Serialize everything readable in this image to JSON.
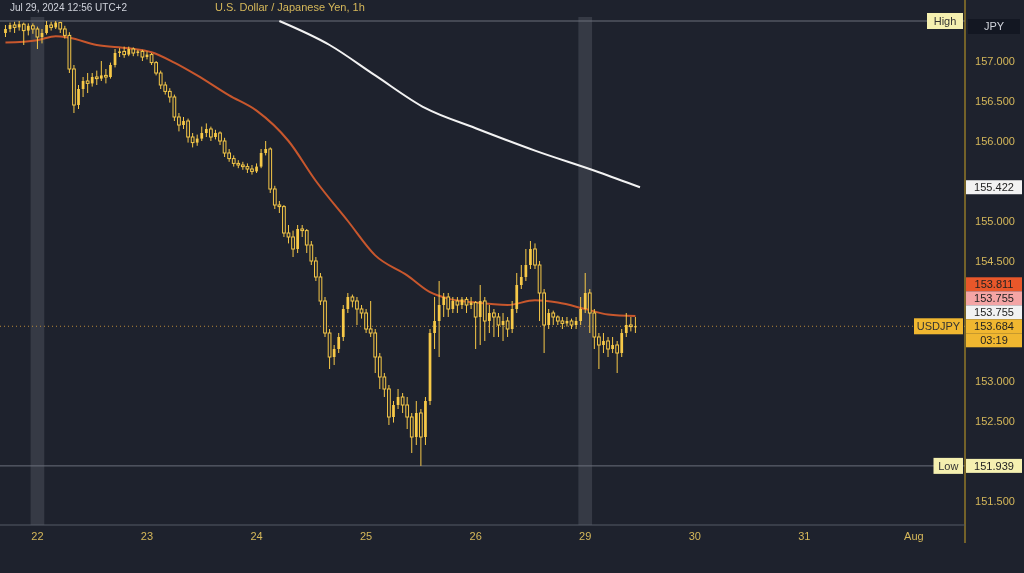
{
  "chart_data": {
    "type": "candlestick",
    "title": "U.S. Dollar / Japanese Yen, 1h",
    "subtitle": "Jul 29, 2024 12:56 UTC+2",
    "color": "#f7c948",
    "categories": [
      null,
      null,
      null,
      null,
      null,
      null,
      null,
      "22",
      null,
      null,
      null,
      null,
      null,
      null,
      null,
      null,
      null,
      null,
      null,
      null,
      null,
      null,
      null,
      null,
      null,
      null,
      null,
      null,
      null,
      null,
      null,
      "23",
      null,
      null,
      null,
      null,
      null,
      null,
      null,
      null,
      null,
      null,
      null,
      null,
      null,
      null,
      null,
      null,
      null,
      null,
      null,
      null,
      null,
      null,
      null,
      "24",
      null,
      null,
      null,
      null,
      null,
      null,
      null,
      null,
      null,
      null,
      null,
      null,
      null,
      null,
      null,
      null,
      null,
      null,
      null,
      null,
      null,
      null,
      null,
      "25",
      null,
      null,
      null,
      null,
      null,
      null,
      null,
      null,
      null,
      null,
      null,
      null,
      null,
      null,
      null,
      null,
      null,
      null,
      null,
      null,
      null,
      null,
      null,
      "26",
      null,
      null,
      null,
      null,
      null,
      null,
      null,
      null,
      null,
      null,
      null,
      null,
      null,
      null,
      null,
      null,
      null,
      null,
      null,
      null,
      null,
      null,
      null,
      "29",
      null,
      null,
      null,
      null,
      null,
      null,
      null,
      null,
      null,
      null,
      null,
      null,
      null,
      null,
      null,
      null,
      null,
      null,
      null,
      null,
      null,
      null,
      null,
      "30",
      null,
      null,
      null,
      null,
      null,
      null,
      null,
      null,
      null,
      null,
      null,
      null,
      null,
      null,
      null,
      null,
      null,
      null,
      null,
      null,
      null,
      null,
      null,
      "31",
      null,
      null,
      null,
      null,
      null,
      null,
      null,
      null,
      null,
      null,
      null,
      null,
      null,
      null,
      null,
      null,
      null,
      null,
      null,
      null,
      null,
      null,
      null,
      "Aug",
      null,
      null,
      null,
      null,
      null,
      null,
      null,
      null,
      null,
      null
    ],
    "ohlc": [
      [
        157.35,
        157.45,
        157.3,
        157.4
      ],
      [
        157.4,
        157.48,
        157.36,
        157.45
      ],
      [
        157.45,
        157.49,
        157.35,
        157.42
      ],
      [
        157.42,
        157.5,
        157.38,
        157.46
      ],
      [
        157.46,
        157.48,
        157.2,
        157.38
      ],
      [
        157.38,
        157.47,
        157.32,
        157.44
      ],
      [
        157.44,
        157.47,
        157.34,
        157.4
      ],
      [
        157.4,
        157.43,
        157.15,
        157.3
      ],
      [
        157.3,
        157.4,
        157.22,
        157.35
      ],
      [
        157.35,
        157.5,
        157.33,
        157.45
      ],
      [
        157.45,
        157.49,
        157.38,
        157.42
      ],
      [
        157.42,
        157.5,
        157.4,
        157.48
      ],
      [
        157.48,
        157.49,
        157.35,
        157.4
      ],
      [
        157.4,
        157.44,
        157.28,
        157.32
      ],
      [
        157.32,
        157.36,
        156.85,
        156.9
      ],
      [
        156.9,
        156.95,
        156.35,
        156.45
      ],
      [
        156.45,
        156.7,
        156.4,
        156.65
      ],
      [
        156.65,
        156.8,
        156.55,
        156.75
      ],
      [
        156.75,
        156.85,
        156.6,
        156.72
      ],
      [
        156.72,
        156.85,
        156.68,
        156.8
      ],
      [
        156.8,
        156.88,
        156.7,
        156.78
      ],
      [
        156.78,
        157,
        156.75,
        156.82
      ],
      [
        156.82,
        156.9,
        156.72,
        156.8
      ],
      [
        156.8,
        156.98,
        156.78,
        156.95
      ],
      [
        156.95,
        157.15,
        156.92,
        157.1
      ],
      [
        157.1,
        157.16,
        157.05,
        157.12
      ],
      [
        157.12,
        157.18,
        157.04,
        157.08
      ],
      [
        157.08,
        157.18,
        157.06,
        157.15
      ],
      [
        157.15,
        157.17,
        157.06,
        157.1
      ],
      [
        157.1,
        157.14,
        157.06,
        157.12
      ],
      [
        157.12,
        157.14,
        157,
        157.05
      ],
      [
        157.05,
        157.12,
        157.02,
        157.08
      ],
      [
        157.08,
        157.1,
        156.95,
        156.98
      ],
      [
        156.98,
        157,
        156.82,
        156.85
      ],
      [
        156.85,
        156.88,
        156.65,
        156.7
      ],
      [
        156.7,
        156.74,
        156.58,
        156.62
      ],
      [
        156.62,
        156.66,
        156.48,
        156.55
      ],
      [
        156.55,
        156.58,
        156.25,
        156.3
      ],
      [
        156.3,
        156.35,
        156.12,
        156.2
      ],
      [
        156.2,
        156.3,
        156.15,
        156.25
      ],
      [
        156.25,
        156.28,
        155.98,
        156.05
      ],
      [
        156.05,
        156.1,
        155.92,
        155.98
      ],
      [
        155.98,
        156.08,
        155.94,
        156.03
      ],
      [
        156.03,
        156.18,
        156,
        156.1
      ],
      [
        156.1,
        156.22,
        156.05,
        156.15
      ],
      [
        156.15,
        156.18,
        156,
        156.05
      ],
      [
        156.05,
        156.14,
        156.02,
        156.1
      ],
      [
        156.1,
        156.12,
        155.95,
        156
      ],
      [
        156,
        156.04,
        155.8,
        155.85
      ],
      [
        155.85,
        155.9,
        155.74,
        155.78
      ],
      [
        155.78,
        155.82,
        155.68,
        155.72
      ],
      [
        155.72,
        155.76,
        155.66,
        155.7
      ],
      [
        155.7,
        155.74,
        155.64,
        155.68
      ],
      [
        155.68,
        155.72,
        155.6,
        155.65
      ],
      [
        155.65,
        155.7,
        155.58,
        155.62
      ],
      [
        155.62,
        155.72,
        155.6,
        155.68
      ],
      [
        155.68,
        155.9,
        155.66,
        155.85
      ],
      [
        155.85,
        156,
        155.82,
        155.9
      ],
      [
        155.9,
        155.92,
        155.35,
        155.4
      ],
      [
        155.4,
        155.44,
        155.15,
        155.2
      ],
      [
        155.2,
        155.25,
        155.1,
        155.18
      ],
      [
        155.18,
        155.2,
        154.8,
        154.85
      ],
      [
        154.85,
        154.95,
        154.72,
        154.8
      ],
      [
        154.8,
        154.88,
        154.55,
        154.65
      ],
      [
        154.65,
        154.95,
        154.6,
        154.9
      ],
      [
        154.9,
        154.95,
        154.8,
        154.88
      ],
      [
        154.88,
        154.9,
        154.6,
        154.7
      ],
      [
        154.7,
        154.75,
        154.45,
        154.5
      ],
      [
        154.5,
        154.55,
        154.25,
        154.3
      ],
      [
        154.3,
        154.35,
        153.95,
        154
      ],
      [
        154,
        154.05,
        153.55,
        153.6
      ],
      [
        153.6,
        153.65,
        153.15,
        153.3
      ],
      [
        153.3,
        153.45,
        153.2,
        153.4
      ],
      [
        153.4,
        153.6,
        153.35,
        153.55
      ],
      [
        153.55,
        153.95,
        153.5,
        153.9
      ],
      [
        153.9,
        154.1,
        153.85,
        154.05
      ],
      [
        154.05,
        154.08,
        153.92,
        154
      ],
      [
        154,
        154.05,
        153.7,
        153.9
      ],
      [
        153.9,
        153.95,
        153.78,
        153.85
      ],
      [
        153.85,
        153.9,
        153.6,
        153.65
      ],
      [
        153.65,
        154,
        153.55,
        153.6
      ],
      [
        153.6,
        153.65,
        153.1,
        153.3
      ],
      [
        153.3,
        153.35,
        152.9,
        153.05
      ],
      [
        153.05,
        153.1,
        152.8,
        152.9
      ],
      [
        152.9,
        152.95,
        152.45,
        152.55
      ],
      [
        152.55,
        152.75,
        152.48,
        152.7
      ],
      [
        152.7,
        152.9,
        152.65,
        152.8
      ],
      [
        152.8,
        152.85,
        152.6,
        152.7
      ],
      [
        152.7,
        152.8,
        152.4,
        152.55
      ],
      [
        152.55,
        152.6,
        152.1,
        152.3
      ],
      [
        152.3,
        152.75,
        152.2,
        152.6
      ],
      [
        152.6,
        152.65,
        151.939,
        152.3
      ],
      [
        152.3,
        152.8,
        152.2,
        152.75
      ],
      [
        152.75,
        153.65,
        152.7,
        153.6
      ],
      [
        153.6,
        154.05,
        153.4,
        153.75
      ],
      [
        153.75,
        154.25,
        153.3,
        153.95
      ],
      [
        153.95,
        154.1,
        153.8,
        154.05
      ],
      [
        154.05,
        154.1,
        153.8,
        153.9
      ],
      [
        153.9,
        154.05,
        153.85,
        154
      ],
      [
        154,
        154.05,
        153.85,
        153.95
      ],
      [
        153.95,
        154.05,
        153.9,
        154.02
      ],
      [
        154.02,
        154.05,
        153.85,
        153.95
      ],
      [
        153.95,
        154.05,
        153.9,
        153.98
      ],
      [
        153.98,
        154,
        153.4,
        153.8
      ],
      [
        153.8,
        154.2,
        153.45,
        154
      ],
      [
        154,
        154.05,
        153.5,
        153.75
      ],
      [
        153.75,
        153.95,
        153.6,
        153.85
      ],
      [
        153.85,
        153.9,
        153.55,
        153.8
      ],
      [
        153.8,
        153.85,
        153.55,
        153.7
      ],
      [
        153.7,
        153.85,
        153.5,
        153.75
      ],
      [
        153.75,
        153.8,
        153.55,
        153.65
      ],
      [
        153.65,
        154,
        153.6,
        153.9
      ],
      [
        153.9,
        154.35,
        153.85,
        154.2
      ],
      [
        154.2,
        154.45,
        154.15,
        154.3
      ],
      [
        154.3,
        154.65,
        154.25,
        154.45
      ],
      [
        154.45,
        154.75,
        154.4,
        154.65
      ],
      [
        154.65,
        154.72,
        154.4,
        154.45
      ],
      [
        154.45,
        154.5,
        153.75,
        154.1
      ],
      [
        154.1,
        154.15,
        153.35,
        153.7
      ],
      [
        153.7,
        153.9,
        153.65,
        153.85
      ],
      [
        153.85,
        153.88,
        153.7,
        153.8
      ],
      [
        153.8,
        153.82,
        153.7,
        153.75
      ],
      [
        153.75,
        153.8,
        153.65,
        153.72
      ],
      [
        153.72,
        153.8,
        153.68,
        153.75
      ],
      [
        153.75,
        153.78,
        153.65,
        153.7
      ],
      [
        153.7,
        153.8,
        153.65,
        153.75
      ],
      [
        153.75,
        154.05,
        153.7,
        153.9
      ],
      [
        153.9,
        154.35,
        153.85,
        154.1
      ],
      [
        154.1,
        154.15,
        153.6,
        153.85
      ],
      [
        153.85,
        153.9,
        153.4,
        153.55
      ],
      [
        153.55,
        153.6,
        153.15,
        153.45
      ],
      [
        153.45,
        153.6,
        153.35,
        153.5
      ],
      [
        153.5,
        153.55,
        153.3,
        153.4
      ],
      [
        153.4,
        153.55,
        153.35,
        153.45
      ],
      [
        153.45,
        153.5,
        153.1,
        153.35
      ],
      [
        153.35,
        153.65,
        153.3,
        153.6
      ],
      [
        153.6,
        153.85,
        153.55,
        153.7
      ],
      [
        153.7,
        153.8,
        153.62,
        153.68
      ],
      [
        153.68,
        153.8,
        153.6,
        153.684
      ],
      null,
      null,
      null,
      null,
      null,
      null,
      null,
      null,
      null,
      null,
      null,
      null,
      null,
      null,
      null,
      null,
      null,
      null,
      null,
      null,
      null,
      null,
      null,
      null,
      null,
      null,
      null,
      null,
      null,
      null,
      null,
      null,
      null,
      null,
      null,
      null,
      null,
      null,
      null,
      null,
      null,
      null,
      null,
      null,
      null,
      null,
      null,
      null,
      null,
      null,
      null,
      null,
      null,
      null,
      null,
      null,
      null,
      null,
      null,
      null,
      null,
      null,
      null,
      null,
      null,
      null,
      null,
      null,
      null,
      null,
      null
    ],
    "series": [
      {
        "type": "line",
        "color": "#c8572d",
        "values": [
          157.23,
          null,
          null,
          null,
          null,
          null,
          null,
          157.26,
          null,
          null,
          null,
          157.31,
          null,
          null,
          157.29,
          null,
          null,
          null,
          null,
          null,
          157.2,
          null,
          null,
          null,
          null,
          null,
          null,
          157.16,
          null,
          null,
          null,
          null,
          157.11,
          null,
          null,
          null,
          null,
          156.98,
          null,
          null,
          null,
          null,
          156.82,
          null,
          null,
          null,
          null,
          null,
          null,
          156.57,
          null,
          null,
          null,
          null,
          null,
          156.38,
          null,
          null,
          null,
          null,
          null,
          null,
          156,
          null,
          null,
          null,
          null,
          null,
          155.5,
          null,
          null,
          null,
          null,
          null,
          null,
          155,
          null,
          null,
          null,
          null,
          null,
          154.57,
          null,
          null,
          null,
          null,
          null,
          null,
          154.32,
          null,
          null,
          null,
          null,
          154.11,
          null,
          null,
          null,
          154.03,
          null,
          null,
          null,
          null,
          null,
          153.98,
          null,
          null,
          null,
          null,
          null,
          null,
          153.95,
          null,
          null,
          null,
          null,
          null,
          154.01,
          null,
          null,
          null,
          null,
          153.98,
          null,
          null,
          null,
          null,
          null,
          153.9,
          null,
          null,
          null,
          null,
          153.83,
          null,
          null,
          null,
          null,
          null,
          153.811,
          null,
          null,
          null,
          null,
          null,
          null,
          null,
          null,
          null,
          null,
          null,
          null,
          null,
          null,
          null,
          null,
          null,
          null,
          null,
          null,
          null,
          null,
          null,
          null,
          null,
          null,
          null,
          null,
          null,
          null,
          null,
          null,
          null,
          null,
          null,
          null,
          null,
          null,
          null,
          null,
          null,
          null,
          null,
          null,
          null,
          null,
          null,
          null,
          null,
          null,
          null,
          null,
          null,
          null,
          null,
          null,
          null,
          null,
          null,
          null,
          null,
          null,
          null,
          null,
          null,
          null,
          null,
          null,
          null,
          null,
          null
        ]
      },
      {
        "type": "line",
        "color": "#f2f2f2",
        "values": [
          null,
          null,
          null,
          null,
          null,
          null,
          null,
          null,
          null,
          null,
          null,
          null,
          null,
          null,
          null,
          null,
          null,
          null,
          null,
          null,
          null,
          null,
          null,
          null,
          null,
          null,
          null,
          null,
          null,
          null,
          null,
          null,
          null,
          null,
          null,
          null,
          null,
          null,
          null,
          null,
          null,
          null,
          null,
          null,
          null,
          null,
          null,
          null,
          null,
          null,
          null,
          null,
          null,
          null,
          null,
          null,
          null,
          null,
          null,
          null,
          157.5,
          null,
          null,
          null,
          null,
          null,
          null,
          null,
          null,
          null,
          null,
          157.2,
          null,
          null,
          null,
          null,
          null,
          null,
          null,
          null,
          null,
          156.82,
          null,
          null,
          null,
          null,
          null,
          null,
          null,
          null,
          null,
          null,
          156.41,
          null,
          null,
          null,
          null,
          null,
          null,
          null,
          null,
          null,
          null,
          156.16,
          null,
          null,
          null,
          null,
          null,
          null,
          null,
          null,
          null,
          null,
          null,
          null,
          155.88,
          null,
          null,
          null,
          null,
          null,
          null,
          null,
          null,
          null,
          null,
          null,
          null,
          null,
          155.61,
          null,
          null,
          null,
          null,
          null,
          null,
          null,
          null,
          155.422,
          null,
          null,
          null,
          null,
          null,
          null,
          null,
          null,
          null,
          null,
          null,
          null,
          null,
          null,
          null,
          null,
          null,
          null,
          null,
          null,
          null,
          null,
          null,
          null,
          null,
          null,
          null,
          null,
          null,
          null,
          null,
          null,
          null,
          null,
          null,
          null,
          null,
          null,
          null,
          null,
          null,
          null,
          null,
          null,
          null,
          null,
          null,
          null,
          null,
          null,
          null,
          null,
          null,
          null,
          null,
          null,
          null,
          null,
          null,
          null,
          null,
          null,
          null,
          null,
          null,
          null,
          null,
          null,
          null,
          null
        ]
      }
    ],
    "ylim": [
      151.2,
      157.55
    ],
    "yticks": [
      {
        "value": 151.5,
        "label": "151.500"
      },
      {
        "value": 152.5,
        "label": "152.500"
      },
      {
        "value": 153,
        "label": "153.000"
      },
      {
        "value": 154.5,
        "label": "154.500"
      },
      {
        "value": 155,
        "label": "155.000"
      },
      {
        "value": 156,
        "label": "156.000"
      },
      {
        "value": 156.5,
        "label": "156.500"
      },
      {
        "value": 157,
        "label": "157.000"
      }
    ],
    "ref_lines": [
      {
        "axis": "y",
        "value": 157.5,
        "label": "High",
        "color": "#6b6f7a"
      },
      {
        "axis": "y",
        "value": 151.939,
        "label": "Low",
        "color": "#6b6f7a"
      },
      {
        "axis": "y",
        "value": 153.684,
        "label": "USDJPY",
        "color": "#b8893a",
        "line_style": "dotted"
      }
    ],
    "bands": [
      {
        "axis": "x",
        "from": "22",
        "to": "22",
        "color": "#363a45"
      },
      {
        "axis": "x",
        "from": "29",
        "to": "29",
        "color": "#363a45"
      }
    ],
    "annotations": [
      "JPY",
      "155.422",
      "153.811",
      "153.755",
      "153.755",
      "153.684",
      "03:19",
      "151.939"
    ]
  }
}
